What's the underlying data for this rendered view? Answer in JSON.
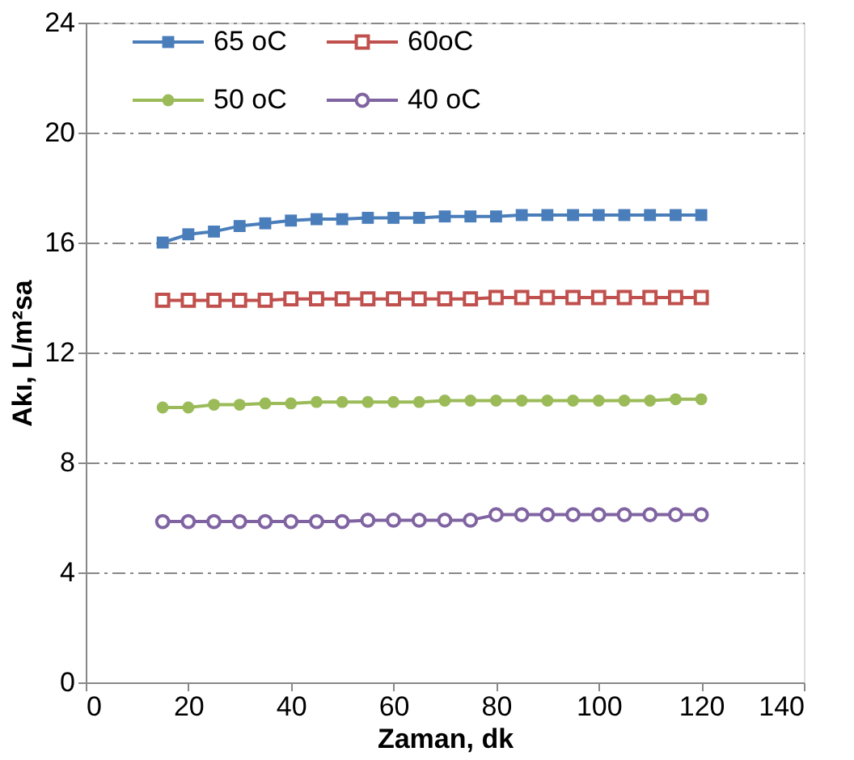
{
  "chart_data": {
    "type": "line",
    "xlabel": "Zaman, dk",
    "ylabel": "Akı, L/m²sa",
    "x": [
      15,
      20,
      25,
      30,
      35,
      40,
      45,
      50,
      55,
      60,
      65,
      70,
      75,
      80,
      85,
      90,
      95,
      100,
      105,
      110,
      115,
      120
    ],
    "series": [
      {
        "name": "65 oC",
        "color": "#4a7ebb",
        "marker": "square",
        "values": [
          16.0,
          16.3,
          16.4,
          16.6,
          16.7,
          16.8,
          16.85,
          16.85,
          16.9,
          16.9,
          16.9,
          16.95,
          16.95,
          16.95,
          17.0,
          17.0,
          17.0,
          17.0,
          17.0,
          17.0,
          17.0,
          17.0
        ]
      },
      {
        "name": "60oC",
        "color": "#c0504d",
        "marker": "square_open",
        "values": [
          13.9,
          13.9,
          13.9,
          13.9,
          13.9,
          13.95,
          13.95,
          13.95,
          13.95,
          13.95,
          13.95,
          13.95,
          13.95,
          14.0,
          14.0,
          14.0,
          14.0,
          14.0,
          14.0,
          14.0,
          14.0,
          14.0
        ]
      },
      {
        "name": "50 oC",
        "color": "#9bbb59",
        "marker": "circle",
        "values": [
          10.0,
          10.0,
          10.1,
          10.1,
          10.15,
          10.15,
          10.2,
          10.2,
          10.2,
          10.2,
          10.2,
          10.25,
          10.25,
          10.25,
          10.25,
          10.25,
          10.25,
          10.25,
          10.25,
          10.25,
          10.3,
          10.3
        ]
      },
      {
        "name": "40 oC",
        "color": "#8064a2",
        "marker": "circle_open",
        "values": [
          5.85,
          5.85,
          5.85,
          5.85,
          5.85,
          5.85,
          5.85,
          5.85,
          5.9,
          5.9,
          5.9,
          5.9,
          5.9,
          6.1,
          6.1,
          6.1,
          6.1,
          6.1,
          6.1,
          6.1,
          6.1,
          6.1
        ]
      }
    ],
    "xlim": [
      0,
      140
    ],
    "xticks": [
      0,
      20,
      40,
      60,
      80,
      100,
      120,
      140
    ],
    "ylim": [
      0,
      24
    ],
    "yticks": [
      0,
      4,
      8,
      12,
      16,
      20,
      24
    ],
    "grid": "y",
    "legend": "top",
    "line_style": "solid"
  }
}
